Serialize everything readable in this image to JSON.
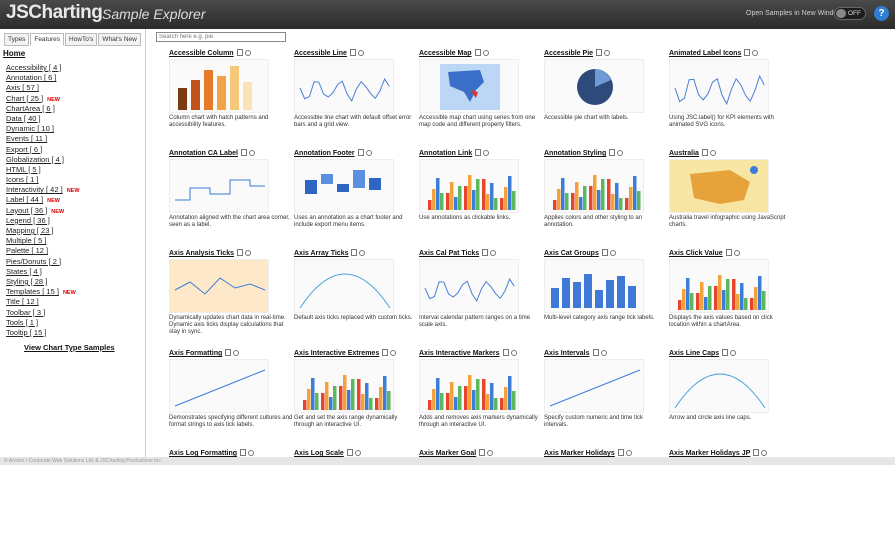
{
  "header": {
    "logo": "JSCharting",
    "subtitle": "Sample Explorer",
    "open_label": "Open Samples in New Window",
    "toggle": "OFF",
    "help": "?"
  },
  "sidebar": {
    "tabs": [
      "Types",
      "Features",
      "HowTo's",
      "What's New"
    ],
    "home": "Home",
    "items": [
      {
        "label": "Accessibility [ 4 ]",
        "new": ""
      },
      {
        "label": "Annotation [ 6 ]",
        "new": ""
      },
      {
        "label": "Axis [ 57 ]",
        "new": ""
      },
      {
        "label": "Chart [ 25 ]",
        "new": "NEW"
      },
      {
        "label": "ChartArea [ 6 ]",
        "new": ""
      },
      {
        "label": "Data [ 40 ]",
        "new": ""
      },
      {
        "label": "Dynamic [ 10 ]",
        "new": ""
      },
      {
        "label": "Events [ 11 ]",
        "new": ""
      },
      {
        "label": "Export [ 6 ]",
        "new": ""
      },
      {
        "label": "Globalization [ 4 ]",
        "new": ""
      },
      {
        "label": "HTML [ 5 ]",
        "new": ""
      },
      {
        "label": "Icons [ 1 ]",
        "new": ""
      },
      {
        "label": "Interactivity [ 42 ]",
        "new": "NEW"
      },
      {
        "label": "Label [ 44 ]",
        "new": "NEW"
      },
      {
        "label": "Layout [ 36 ]",
        "new": "NEW"
      },
      {
        "label": "Legend [ 36 ]",
        "new": ""
      },
      {
        "label": "Mapping [ 23 ]",
        "new": ""
      },
      {
        "label": "Multiple [ 5 ]",
        "new": ""
      },
      {
        "label": "Palette [ 12 ]",
        "new": ""
      },
      {
        "label": "Pies/Donuts [ 2 ]",
        "new": ""
      },
      {
        "label": "States [ 4 ]",
        "new": ""
      },
      {
        "label": "Styling [ 28 ]",
        "new": ""
      },
      {
        "label": "Templates [ 15 ]",
        "new": "NEW"
      },
      {
        "label": "Title [ 12 ]",
        "new": ""
      },
      {
        "label": "Toolbar [ 3 ]",
        "new": ""
      },
      {
        "label": "Tools [ 1 ]",
        "new": ""
      },
      {
        "label": "Tooltip [ 15 ]",
        "new": ""
      }
    ],
    "view_all": "View Chart Type Samples"
  },
  "search": {
    "placeholder": "Search here e.g. pie"
  },
  "cards": [
    {
      "title": "Accessible Column",
      "desc": "Column chart with hatch patterns and accessibility features.",
      "thumb": "bars"
    },
    {
      "title": "Accessible Line",
      "desc": "Accessible line chart with default offset error bars and a grid view.",
      "thumb": "line"
    },
    {
      "title": "Accessible Map",
      "desc": "Accessible map chart using series from one map code and different property filters.",
      "thumb": "map"
    },
    {
      "title": "Accessible Pie",
      "desc": "Accessible pie chart with labels.",
      "thumb": "pie"
    },
    {
      "title": "Animated Label Icons",
      "desc": "Using JSC.label() for KPI elements with animated SVG icons.",
      "thumb": "spark"
    },
    {
      "title": "Annotation CA Label",
      "desc": "Annotation aligned with the chart area corner, seen as a label.",
      "thumb": "step"
    },
    {
      "title": "Annotation Footer",
      "desc": "Uses an annotation as a chart footer and include export menu items.",
      "thumb": "waterfall"
    },
    {
      "title": "Annotation Link",
      "desc": "Use annotations as clickable links.",
      "thumb": "multibar"
    },
    {
      "title": "Annotation Styling",
      "desc": "Applies colors and other styling to an annotation.",
      "thumb": "multibar"
    },
    {
      "title": "Australia",
      "desc": "Australia travel infographic using JavaScript charts.",
      "thumb": "australia"
    },
    {
      "title": "Axis Analysis Ticks",
      "desc": "Dynamically updates chart data in real-time. Dynamic axis ticks display calculations that stay in sync.",
      "thumb": "orangeline"
    },
    {
      "title": "Axis Array Ticks",
      "desc": "Default axis ticks replaced with custom ticks.",
      "thumb": "curve"
    },
    {
      "title": "Axis Cal Pat Ticks",
      "desc": "Interval calendar pattern ranges on a time scale axis.",
      "thumb": "line"
    },
    {
      "title": "Axis Cat Groups",
      "desc": "Multi-level category axis range tick labels.",
      "thumb": "bluebars"
    },
    {
      "title": "Axis Click Value",
      "desc": "Displays the axis values based on click location within a chartArea.",
      "thumb": "multibar"
    },
    {
      "title": "Axis Formatting",
      "desc": "Demonstrates specifying different cultures and format strings to axis tick labels.",
      "thumb": "rising"
    },
    {
      "title": "Axis Interactive Extremes",
      "desc": "Get and set the axis range dynamically through an interactive UI.",
      "thumb": "multibar"
    },
    {
      "title": "Axis Interactive Markers",
      "desc": "Adds and removes axis markers dynamically through an interactive UI.",
      "thumb": "multibar"
    },
    {
      "title": "Axis Intervals",
      "desc": "Specify custom numeric and time tick intervals.",
      "thumb": "rising"
    },
    {
      "title": "Axis Line Caps",
      "desc": "Arrow and circle axis line caps.",
      "thumb": "curve"
    },
    {
      "title": "Axis Log Formatting",
      "desc": "",
      "thumb": "none"
    },
    {
      "title": "Axis Log Scale",
      "desc": "",
      "thumb": "none"
    },
    {
      "title": "Axis Marker Goal",
      "desc": "",
      "thumb": "none"
    },
    {
      "title": "Axis Marker Holidays",
      "desc": "",
      "thumb": "none"
    },
    {
      "title": "Axis Marker Holidays JP",
      "desc": "",
      "thumb": "none"
    }
  ],
  "footer": {
    "text": "© Arction / Corporate Web Solutions Ltd. & JSCharting Productions Inc."
  },
  "colors": {
    "accent": "#2f7fd0",
    "new": "#dd0000",
    "header": "#333333"
  }
}
